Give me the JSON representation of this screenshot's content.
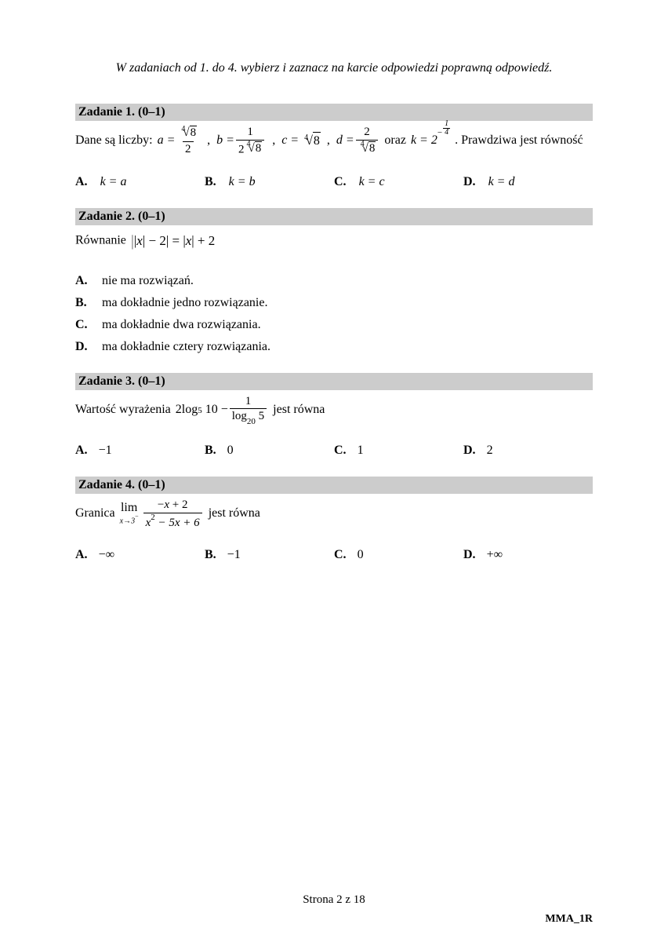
{
  "instruction": "W zadaniach od 1. do 4. wybierz i zaznacz na karcie odpowiedzi poprawną odpowiedź.",
  "tasks": {
    "t1": {
      "heading": "Zadanie 1. (0–1)",
      "prefix": "Dane są liczby:  ",
      "suffix": ". Prawdziwa jest równość",
      "oraz": " oraz ",
      "answers": {
        "A": "k = a",
        "B": "k = b",
        "C": "k = c",
        "D": "k = d"
      }
    },
    "t2": {
      "heading": "Zadanie 2. (0–1)",
      "prefix": "Równanie ",
      "answers": {
        "A": "nie ma rozwiązań.",
        "B": "ma dokładnie jedno rozwiązanie.",
        "C": "ma dokładnie dwa rozwiązania.",
        "D": "ma dokładnie cztery rozwiązania."
      }
    },
    "t3": {
      "heading": "Zadanie 3. (0–1)",
      "prefix": "Wartość wyrażenia  ",
      "suffix": "  jest równa",
      "answers": {
        "A": "−1",
        "B": "0",
        "C": "1",
        "D": "2"
      }
    },
    "t4": {
      "heading": "Zadanie 4. (0–1)",
      "prefix": "Granica  ",
      "suffix": "  jest równa",
      "answers": {
        "A": "−∞",
        "B": "−1",
        "C": "0",
        "D": "+∞"
      }
    }
  },
  "labels": {
    "A": "A.",
    "B": "B.",
    "C": "C.",
    "D": "D."
  },
  "footer": "Strona 2 z 18",
  "doc_id": "MMA_1R",
  "math": {
    "idx4": "4",
    "rad": "√",
    "eight": "8",
    "two": "2",
    "one": "1",
    "a_eq": "a =",
    "b_eq": "b =",
    "c_eq": "c =",
    "d_eq": "d =",
    "k_eq": "k = 2",
    "minus": "−",
    "comma": " ,  ",
    "eq2_lhs_open": "|",
    "eq2_x": "x",
    "eq2_mid": "| − 2| = |",
    "eq2_rhs": "| + 2",
    "log_expr1": "2log",
    "log5": "5",
    "ten": "10 − ",
    "log": "log",
    "twenty": "20",
    "five_b": "5",
    "lim": "lim",
    "limsub": "x→3",
    "limsup_minus": "−",
    "num4": "−x + 2",
    "den4": "x",
    "den4_sq": "2",
    "den4_rest": " − 5x + 6"
  }
}
